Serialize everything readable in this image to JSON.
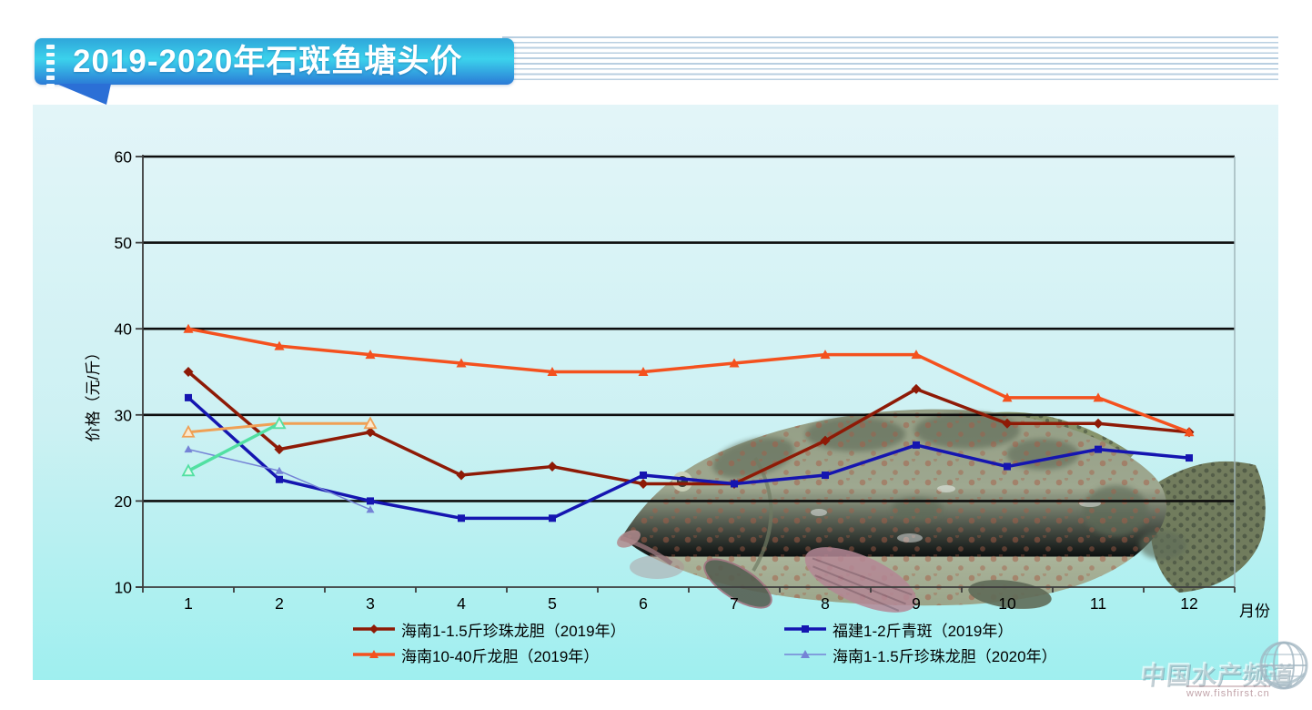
{
  "header": {
    "title": "2019-2020年石斑鱼塘头价"
  },
  "watermark": {
    "name": "中国水产频道",
    "url": "www.fishfirst.cn"
  },
  "colors": {
    "banner_top": "#2fa6da",
    "banner_mid": "#3bd2ec",
    "banner_bottom": "#2b7ad6",
    "panel_top": "#e3f5f8",
    "panel_bottom": "#9fefef",
    "gridline": "#0d0d0d"
  },
  "chart_data": {
    "type": "line",
    "x": [
      "1",
      "2",
      "3",
      "4",
      "5",
      "6",
      "7",
      "8",
      "9",
      "10",
      "11",
      "12"
    ],
    "xlabel": "月份",
    "ylabel": "价格（元/斤）",
    "ylim": [
      10,
      60
    ],
    "yticks": [
      10,
      20,
      30,
      40,
      50,
      60
    ],
    "grid": "horizontal",
    "legend_position": "bottom",
    "series": [
      {
        "name": "海南1-1.5斤珍珠龙胆（2019年）",
        "color": "#8E1A06",
        "marker": "diamond",
        "width": 3.5,
        "in_legend": true,
        "values": [
          35,
          26,
          28,
          23,
          24,
          22,
          22,
          27,
          33,
          29,
          29,
          28
        ]
      },
      {
        "name": "福建1-2斤青斑（2019年）",
        "color": "#1515B0",
        "marker": "square",
        "width": 3.5,
        "in_legend": true,
        "values": [
          32,
          22.5,
          20,
          18,
          18,
          23,
          22,
          23,
          26.5,
          24,
          26,
          25
        ]
      },
      {
        "name": "海南10-40斤龙胆（2019年）",
        "color": "#F4511E",
        "marker": "triangle",
        "width": 3.5,
        "in_legend": true,
        "values": [
          40,
          38,
          37,
          36,
          35,
          35,
          36,
          37,
          37,
          32,
          32,
          28
        ]
      },
      {
        "name": "海南1-1.5斤珍珠龙胆（2020年）",
        "color": "#7583D6",
        "marker": "triangle",
        "width": 1.5,
        "in_legend": true,
        "values": [
          26,
          23.5,
          19
        ]
      },
      {
        "name": "",
        "color": "#F0A055",
        "marker": "triangle-open",
        "marker_fill": "#FBE8CE",
        "width": 3,
        "in_legend": false,
        "values": [
          28,
          29,
          29
        ]
      },
      {
        "name": "",
        "color": "#52E0A2",
        "marker": "triangle-open",
        "marker_fill": "#DCF9EC",
        "width": 3.5,
        "in_legend": false,
        "values": [
          23.5,
          29
        ]
      }
    ]
  },
  "legend": {
    "entries": [
      {
        "series": 0
      },
      {
        "series": 1
      },
      {
        "series": 2
      },
      {
        "series": 3
      }
    ]
  }
}
